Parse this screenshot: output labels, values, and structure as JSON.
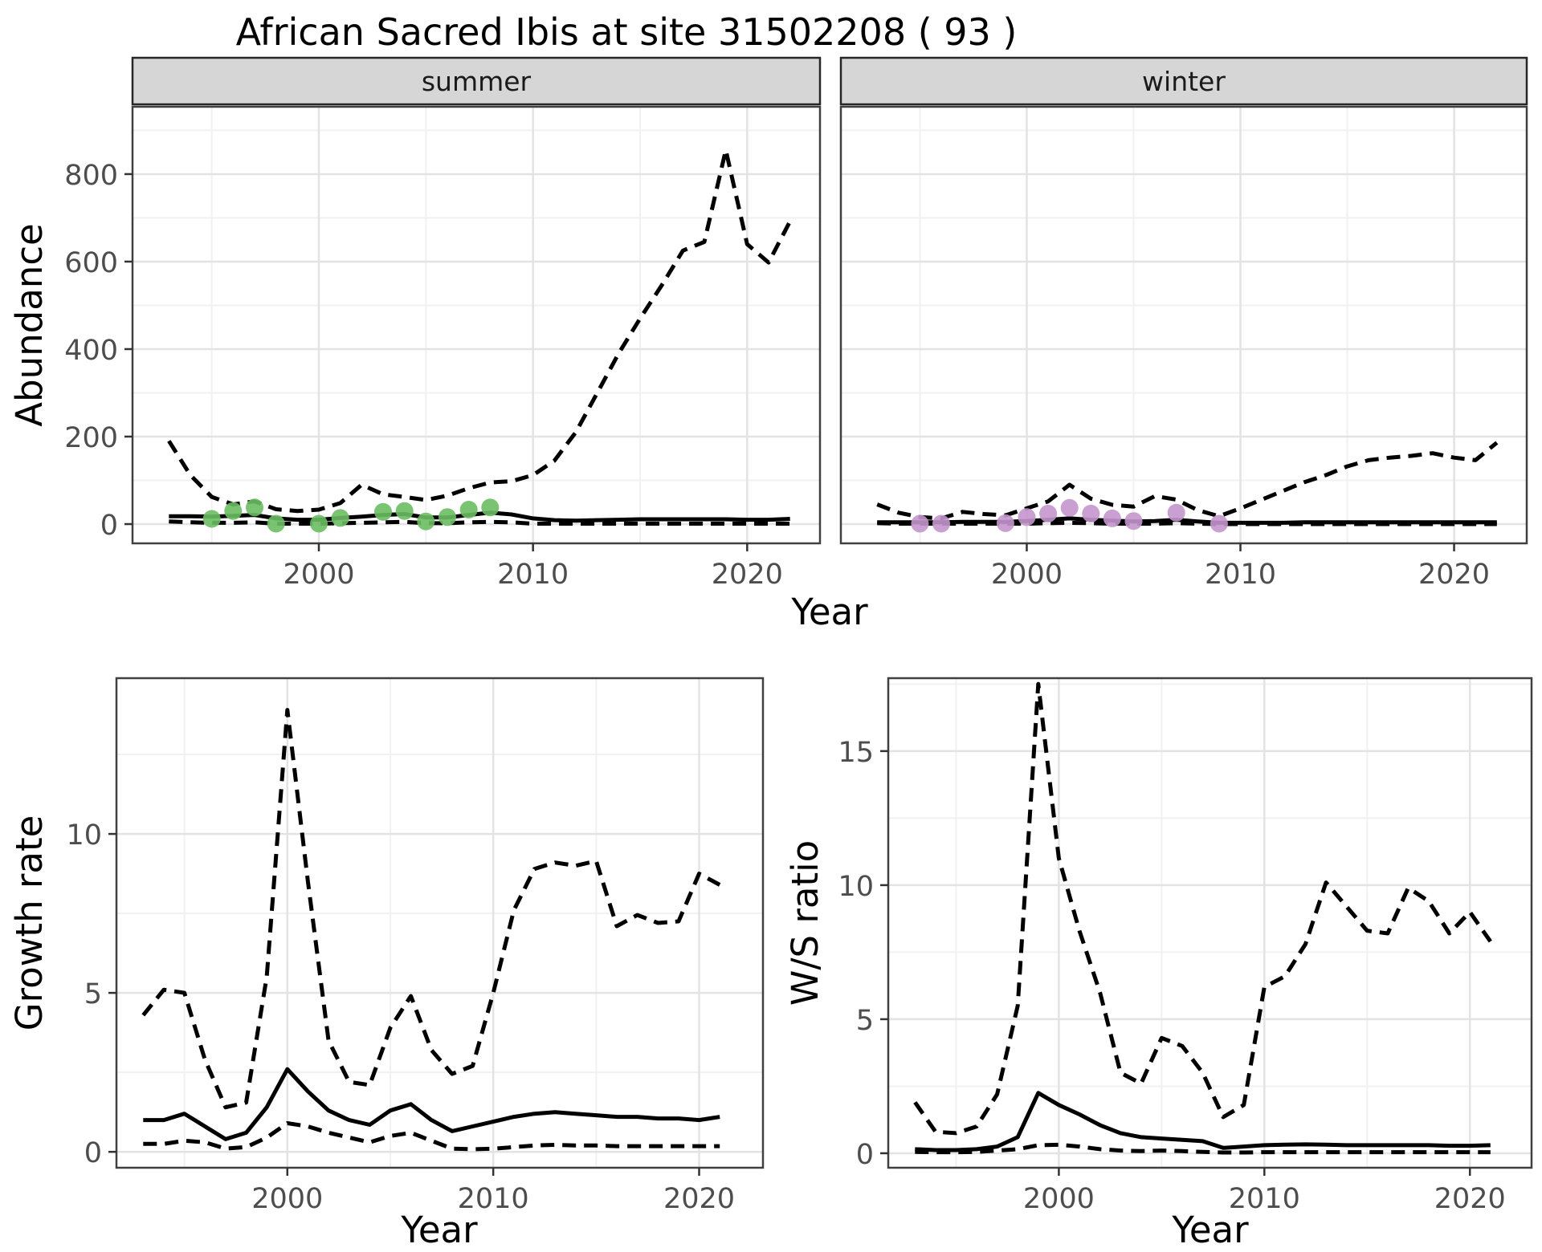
{
  "title": "African Sacred Ibis at site 31502208 ( 93 )",
  "colors": {
    "summer_point": "#6ABE62",
    "winter_point": "#C496CD",
    "line": "#000000",
    "grid_major": "#e3e3e3",
    "grid_minor": "#f1f1f1",
    "panel_border": "#404040",
    "tick_mark": "#333333",
    "axis_text": "#4d4d4d",
    "strip_background": "#d6d6d6"
  },
  "chart_data": [
    {
      "id": "abundance_summer",
      "type": "line",
      "facet_label": "summer",
      "xlabel": "Year",
      "ylabel": "Abundance",
      "xlim": [
        1991.3,
        2023.4
      ],
      "ylim": [
        -44,
        954
      ],
      "x_ticks": [
        2000,
        2010,
        2020
      ],
      "x_minor": [
        1995,
        2005,
        2015
      ],
      "y_ticks": [
        0,
        200,
        400,
        600,
        800
      ],
      "y_minor": [
        100,
        300,
        500,
        700,
        900
      ],
      "x": [
        1993,
        1994,
        1995,
        1996,
        1997,
        1998,
        1999,
        2000,
        2001,
        2002,
        2003,
        2004,
        2005,
        2006,
        2007,
        2008,
        2009,
        2010,
        2011,
        2012,
        2013,
        2014,
        2015,
        2016,
        2017,
        2018,
        2019,
        2020,
        2021,
        2022
      ],
      "series": [
        {
          "name": "model_fit",
          "style": "solid",
          "y": [
            18,
            18,
            17,
            19,
            21,
            13,
            10,
            10,
            14,
            17,
            21,
            23,
            15,
            15,
            21,
            26,
            22,
            13,
            9,
            8,
            9,
            10,
            11,
            11,
            11,
            11,
            11,
            10,
            10,
            12
          ]
        },
        {
          "name": "ci_upper",
          "style": "dashed",
          "y": [
            190,
            112,
            62,
            45,
            52,
            34,
            30,
            33,
            48,
            90,
            68,
            62,
            55,
            65,
            82,
            95,
            98,
            112,
            145,
            210,
            300,
            390,
            470,
            545,
            625,
            645,
            855,
            640,
            598,
            692
          ]
        },
        {
          "name": "ci_lower",
          "style": "dashed",
          "y": [
            6,
            4,
            3,
            3,
            4,
            1,
            1,
            1,
            2,
            3,
            4,
            5,
            2,
            2,
            4,
            5,
            4,
            1,
            1,
            1,
            1,
            1,
            1,
            1,
            1,
            1,
            1,
            1,
            1,
            1
          ]
        }
      ],
      "points": {
        "name": "observed_counts_summer",
        "color": "#6ABE62",
        "x": [
          1995,
          1996,
          1997,
          1998,
          2000,
          2001,
          2003,
          2004,
          2005,
          2006,
          2007,
          2008
        ],
        "y": [
          12,
          30,
          38,
          1,
          1,
          14,
          28,
          30,
          6,
          16,
          33,
          38
        ]
      }
    },
    {
      "id": "abundance_winter",
      "type": "line",
      "facet_label": "winter",
      "xlabel": "Year",
      "ylabel": "Abundance",
      "xlim": [
        1991.3,
        2023.4
      ],
      "ylim": [
        -44,
        954
      ],
      "x_ticks": [
        2000,
        2010,
        2020
      ],
      "x_minor": [
        1995,
        2005,
        2015
      ],
      "y_ticks": [
        0,
        200,
        400,
        600,
        800
      ],
      "y_minor": [
        100,
        300,
        500,
        700,
        900
      ],
      "x": [
        1993,
        1994,
        1995,
        1996,
        1997,
        1998,
        1999,
        2000,
        2001,
        2002,
        2003,
        2004,
        2005,
        2006,
        2007,
        2008,
        2009,
        2010,
        2011,
        2012,
        2013,
        2014,
        2015,
        2016,
        2017,
        2018,
        2019,
        2020,
        2021,
        2022
      ],
      "series": [
        {
          "name": "model_fit",
          "style": "solid",
          "y": [
            4,
            4,
            4,
            4,
            5,
            5,
            5,
            7,
            10,
            13,
            10,
            8,
            6,
            7,
            10,
            6,
            3,
            3,
            3,
            3,
            4,
            4,
            4,
            4,
            4,
            4,
            4,
            4,
            4,
            4
          ]
        },
        {
          "name": "ci_upper",
          "style": "dashed",
          "y": [
            45,
            26,
            16,
            13,
            28,
            23,
            20,
            36,
            52,
            90,
            58,
            44,
            40,
            64,
            56,
            32,
            18,
            36,
            56,
            76,
            96,
            112,
            132,
            146,
            152,
            156,
            162,
            152,
            146,
            186
          ]
        },
        {
          "name": "ci_lower",
          "style": "dashed",
          "y": [
            2,
            1,
            1,
            1,
            1,
            1,
            1,
            1,
            2,
            3,
            2,
            1,
            1,
            1,
            2,
            1,
            0,
            0,
            0,
            0,
            0,
            0,
            0,
            0,
            0,
            0,
            0,
            0,
            0,
            0
          ]
        }
      ],
      "points": {
        "name": "observed_counts_winter",
        "color": "#C496CD",
        "x": [
          1995,
          1996,
          1999,
          2000,
          2001,
          2002,
          2003,
          2004,
          2005,
          2007,
          2009
        ],
        "y": [
          1,
          1,
          2,
          16,
          24,
          37,
          24,
          13,
          7,
          26,
          1
        ]
      }
    },
    {
      "id": "growth_rate",
      "type": "line",
      "facet_label": "",
      "xlabel": "Year",
      "ylabel": "Growth rate",
      "xlim": [
        1991.7,
        2023.1
      ],
      "ylim": [
        -0.5,
        14.9
      ],
      "x_ticks": [
        2000,
        2010,
        2020
      ],
      "x_minor": [
        1995,
        2005,
        2015
      ],
      "y_ticks": [
        0,
        5,
        10
      ],
      "y_minor": [
        2.5,
        7.5,
        12.5
      ],
      "x": [
        1993,
        1994,
        1995,
        1996,
        1997,
        1998,
        1999,
        2000,
        2001,
        2002,
        2003,
        2004,
        2005,
        2006,
        2007,
        2008,
        2009,
        2010,
        2011,
        2012,
        2013,
        2014,
        2015,
        2016,
        2017,
        2018,
        2019,
        2020,
        2021
      ],
      "series": [
        {
          "name": "model_fit",
          "style": "solid",
          "y": [
            1.0,
            1.0,
            1.2,
            0.8,
            0.4,
            0.6,
            1.4,
            2.6,
            1.9,
            1.3,
            1.0,
            0.85,
            1.3,
            1.5,
            1.0,
            0.65,
            0.8,
            0.95,
            1.1,
            1.2,
            1.25,
            1.2,
            1.15,
            1.1,
            1.1,
            1.05,
            1.05,
            1.0,
            1.1
          ]
        },
        {
          "name": "ci_upper",
          "style": "dashed",
          "y": [
            4.3,
            5.1,
            5.0,
            2.9,
            1.4,
            1.55,
            5.5,
            13.9,
            8.5,
            3.5,
            2.2,
            2.1,
            3.9,
            4.9,
            3.2,
            2.45,
            2.7,
            5.0,
            7.6,
            8.9,
            9.1,
            9.0,
            9.15,
            7.1,
            7.45,
            7.2,
            7.25,
            8.75,
            8.4
          ]
        },
        {
          "name": "ci_lower",
          "style": "dashed",
          "y": [
            0.25,
            0.25,
            0.35,
            0.3,
            0.1,
            0.15,
            0.45,
            0.9,
            0.8,
            0.6,
            0.45,
            0.3,
            0.5,
            0.6,
            0.35,
            0.1,
            0.08,
            0.1,
            0.15,
            0.2,
            0.22,
            0.2,
            0.2,
            0.18,
            0.18,
            0.18,
            0.18,
            0.18,
            0.18
          ]
        }
      ],
      "points": null
    },
    {
      "id": "ws_ratio",
      "type": "line",
      "facet_label": "",
      "xlabel": "Year",
      "ylabel": "W/S ratio",
      "xlim": [
        1991.7,
        2023.0
      ],
      "ylim": [
        -0.54,
        17.72
      ],
      "x_ticks": [
        2000,
        2010,
        2020
      ],
      "x_minor": [
        1995,
        2005,
        2015
      ],
      "y_ticks": [
        0,
        5,
        10,
        15
      ],
      "y_minor": [
        2.5,
        7.5,
        12.5,
        17.5
      ],
      "x": [
        1993,
        1994,
        1995,
        1996,
        1997,
        1998,
        1999,
        2000,
        2001,
        2002,
        2003,
        2004,
        2005,
        2006,
        2007,
        2008,
        2009,
        2010,
        2011,
        2012,
        2013,
        2014,
        2015,
        2016,
        2017,
        2018,
        2019,
        2020,
        2021
      ],
      "series": [
        {
          "name": "model_fit",
          "style": "solid",
          "y": [
            0.15,
            0.12,
            0.12,
            0.15,
            0.25,
            0.6,
            2.25,
            1.8,
            1.45,
            1.05,
            0.75,
            0.6,
            0.55,
            0.5,
            0.45,
            0.2,
            0.25,
            0.3,
            0.32,
            0.33,
            0.32,
            0.3,
            0.3,
            0.3,
            0.3,
            0.3,
            0.28,
            0.28,
            0.3
          ]
        },
        {
          "name": "ci_upper",
          "style": "dashed",
          "y": [
            1.9,
            0.8,
            0.75,
            1.0,
            2.2,
            5.5,
            17.5,
            11.0,
            8.3,
            6.0,
            3.0,
            2.6,
            4.3,
            4.0,
            3.0,
            1.35,
            1.8,
            6.2,
            6.6,
            7.8,
            10.1,
            9.2,
            8.3,
            8.2,
            9.9,
            9.4,
            8.2,
            9.0,
            7.9
          ]
        },
        {
          "name": "ci_lower",
          "style": "dashed",
          "y": [
            0.05,
            0.04,
            0.04,
            0.05,
            0.1,
            0.15,
            0.3,
            0.32,
            0.25,
            0.15,
            0.1,
            0.08,
            0.1,
            0.08,
            0.05,
            0.03,
            0.03,
            0.04,
            0.04,
            0.04,
            0.04,
            0.04,
            0.04,
            0.04,
            0.04,
            0.04,
            0.04,
            0.04,
            0.04
          ]
        }
      ],
      "points": null
    }
  ]
}
